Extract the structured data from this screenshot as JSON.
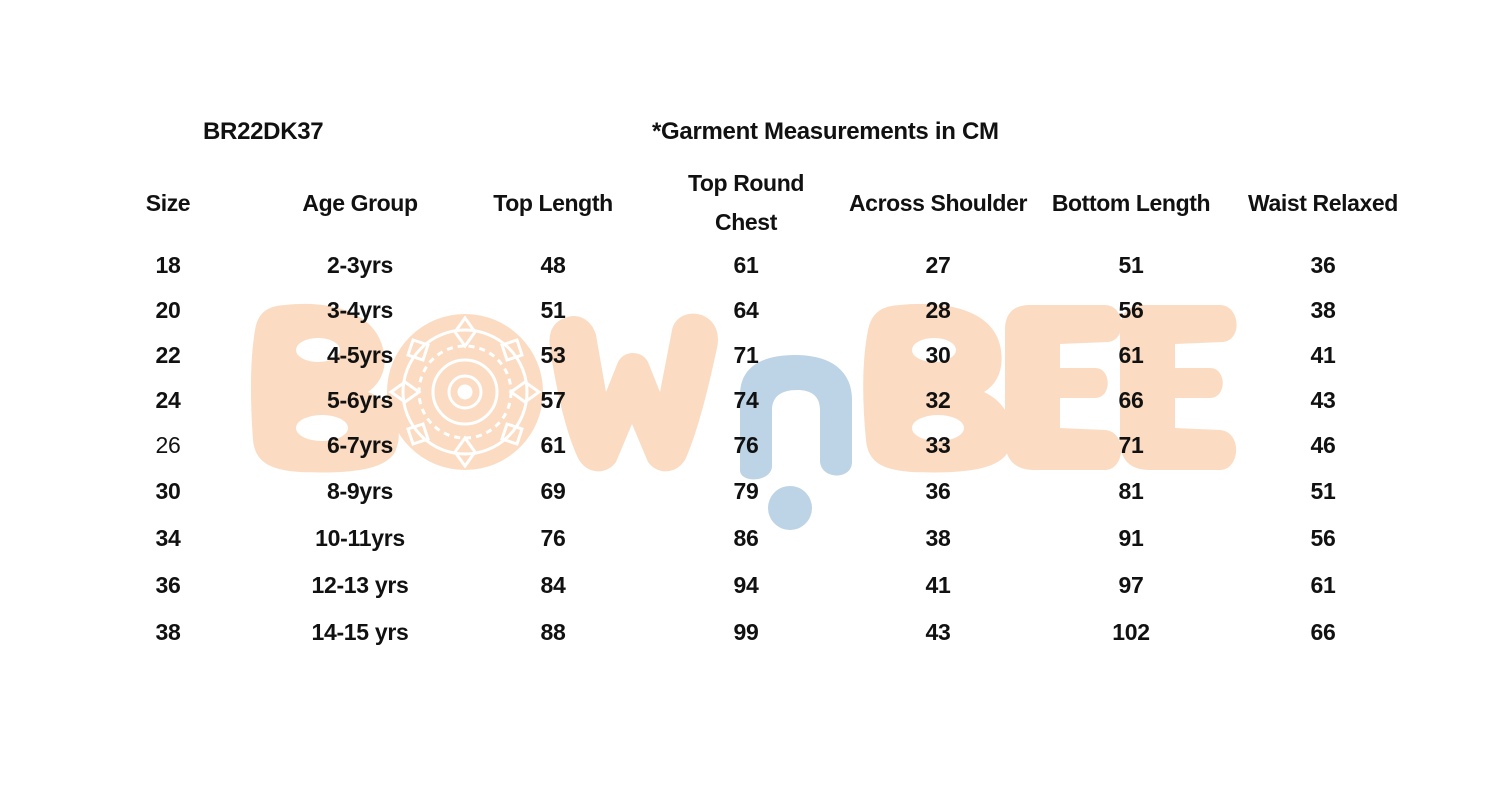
{
  "document": {
    "style_code": "BR22DK37",
    "title": "*Garment Measurements in CM"
  },
  "watermark": {
    "logo_text": "BOWnBEE",
    "colors": {
      "peach": "#fbdcc2",
      "blue": "#bdd3e6"
    }
  },
  "table": {
    "headers": [
      "Size",
      "Age Group",
      "Top Length",
      "Top Round Chest",
      "Across Shoulder",
      "Bottom Length",
      "Waist Relaxed"
    ],
    "rows": [
      [
        "18",
        "2-3yrs",
        "48",
        "61",
        "27",
        "51",
        "36"
      ],
      [
        "20",
        "3-4yrs",
        "51",
        "64",
        "28",
        "56",
        "38"
      ],
      [
        "22",
        "4-5yrs",
        "53",
        "71",
        "30",
        "61",
        "41"
      ],
      [
        "24",
        "5-6yrs",
        "57",
        "74",
        "32",
        "66",
        "43"
      ],
      [
        "26",
        "6-7yrs",
        "61",
        "76",
        "33",
        "71",
        "46"
      ],
      [
        "30",
        "8-9yrs",
        "69",
        "79",
        "36",
        "81",
        "51"
      ],
      [
        "34",
        "10-11yrs",
        "76",
        "86",
        "38",
        "91",
        "56"
      ],
      [
        "36",
        "12-13 yrs",
        "84",
        "94",
        "41",
        "97",
        "61"
      ],
      [
        "38",
        "14-15 yrs",
        "88",
        "99",
        "43",
        "102",
        "66"
      ]
    ]
  }
}
